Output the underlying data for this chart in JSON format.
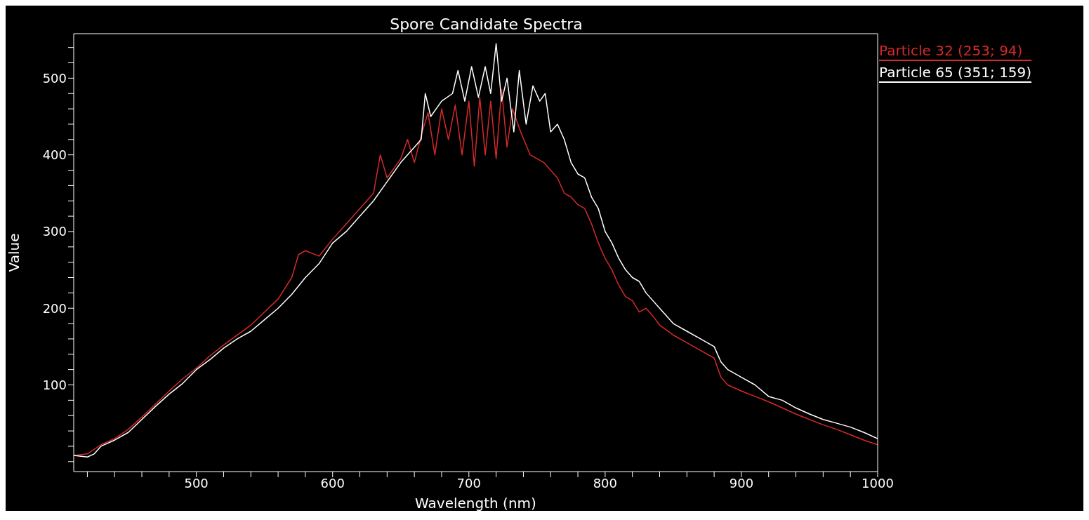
{
  "chart_data": {
    "type": "line",
    "title": "Spore Candidate Spectra",
    "xlabel": "Wavelength (nm)",
    "ylabel": "Value",
    "xlim": [
      410,
      1000
    ],
    "ylim": [
      -13,
      558
    ],
    "xticks": [
      {
        "value": 420,
        "label": null
      },
      {
        "value": 440,
        "label": null
      },
      {
        "value": 460,
        "label": null
      },
      {
        "value": 480,
        "label": null
      },
      500,
      {
        "value": 520,
        "label": null
      },
      {
        "value": 540,
        "label": null
      },
      {
        "value": 560,
        "label": null
      },
      {
        "value": 580,
        "label": null
      },
      600,
      {
        "value": 620,
        "label": null
      },
      {
        "value": 640,
        "label": null
      },
      {
        "value": 660,
        "label": null
      },
      {
        "value": 680,
        "label": null
      },
      700,
      {
        "value": 720,
        "label": null
      },
      {
        "value": 740,
        "label": null
      },
      {
        "value": 760,
        "label": null
      },
      {
        "value": 780,
        "label": null
      },
      800,
      {
        "value": 820,
        "label": null
      },
      {
        "value": 840,
        "label": null
      },
      {
        "value": 860,
        "label": null
      },
      {
        "value": 880,
        "label": null
      },
      900,
      {
        "value": 920,
        "label": null
      },
      {
        "value": 940,
        "label": null
      },
      {
        "value": 960,
        "label": null
      },
      {
        "value": 980,
        "label": null
      },
      1000
    ],
    "yticks": [
      {
        "value": 0,
        "label": null
      },
      {
        "value": 20,
        "label": null
      },
      {
        "value": 40,
        "label": null
      },
      {
        "value": 60,
        "label": null
      },
      {
        "value": 80,
        "label": null
      },
      100,
      {
        "value": 120,
        "label": null
      },
      {
        "value": 140,
        "label": null
      },
      {
        "value": 160,
        "label": null
      },
      {
        "value": 180,
        "label": null
      },
      200,
      {
        "value": 220,
        "label": null
      },
      {
        "value": 240,
        "label": null
      },
      {
        "value": 260,
        "label": null
      },
      {
        "value": 280,
        "label": null
      },
      300,
      {
        "value": 320,
        "label": null
      },
      {
        "value": 340,
        "label": null
      },
      {
        "value": 360,
        "label": null
      },
      {
        "value": 380,
        "label": null
      },
      400,
      {
        "value": 420,
        "label": null
      },
      {
        "value": 440,
        "label": null
      },
      {
        "value": 460,
        "label": null
      },
      {
        "value": 480,
        "label": null
      },
      500,
      {
        "value": 520,
        "label": null
      },
      {
        "value": 540,
        "label": null
      }
    ],
    "legend": "top right",
    "marker": "none",
    "line_style": "solid",
    "series": [
      {
        "name": "Particle 32 (253; 94)",
        "color": "#d42a2a",
        "x": [
          410,
          420,
          430,
          440,
          450,
          460,
          470,
          480,
          490,
          500,
          510,
          520,
          530,
          540,
          550,
          560,
          570,
          575,
          580,
          590,
          600,
          610,
          620,
          630,
          635,
          640,
          650,
          655,
          660,
          665,
          670,
          675,
          680,
          685,
          690,
          695,
          700,
          704,
          708,
          712,
          716,
          720,
          724,
          728,
          732,
          738,
          745,
          750,
          755,
          760,
          765,
          770,
          775,
          780,
          785,
          790,
          795,
          800,
          805,
          810,
          815,
          820,
          825,
          830,
          835,
          840,
          850,
          860,
          870,
          880,
          885,
          890,
          900,
          910,
          920,
          930,
          940,
          950,
          960,
          970,
          980,
          990,
          1000
        ],
        "values": [
          8,
          10,
          22,
          30,
          42,
          58,
          75,
          92,
          108,
          122,
          138,
          152,
          165,
          178,
          195,
          212,
          240,
          270,
          275,
          268,
          290,
          310,
          330,
          350,
          400,
          370,
          395,
          420,
          390,
          425,
          455,
          400,
          460,
          420,
          465,
          400,
          470,
          385,
          475,
          400,
          470,
          395,
          485,
          410,
          460,
          430,
          400,
          395,
          390,
          380,
          370,
          350,
          345,
          335,
          330,
          310,
          285,
          265,
          250,
          230,
          215,
          210,
          195,
          200,
          190,
          178,
          165,
          155,
          145,
          135,
          110,
          100,
          92,
          85,
          78,
          70,
          62,
          55,
          48,
          42,
          35,
          28,
          22
        ]
      },
      {
        "name": "Particle 65 (351; 159)",
        "color": "#ffffff",
        "x": [
          410,
          420,
          425,
          430,
          440,
          450,
          460,
          470,
          480,
          490,
          500,
          510,
          520,
          530,
          540,
          550,
          560,
          570,
          580,
          590,
          600,
          610,
          620,
          630,
          640,
          650,
          660,
          665,
          668,
          672,
          680,
          688,
          692,
          697,
          702,
          707,
          712,
          716,
          720,
          724,
          728,
          733,
          737,
          742,
          747,
          752,
          756,
          760,
          765,
          770,
          775,
          780,
          785,
          790,
          795,
          800,
          805,
          810,
          815,
          820,
          825,
          830,
          840,
          850,
          860,
          870,
          880,
          885,
          890,
          900,
          910,
          920,
          930,
          940,
          950,
          960,
          970,
          980,
          990,
          1000
        ],
        "values": [
          8,
          6,
          10,
          20,
          28,
          38,
          55,
          72,
          88,
          102,
          120,
          133,
          148,
          160,
          170,
          185,
          200,
          218,
          240,
          258,
          285,
          300,
          320,
          340,
          365,
          390,
          410,
          420,
          480,
          450,
          470,
          480,
          510,
          470,
          515,
          475,
          515,
          480,
          545,
          470,
          500,
          430,
          510,
          440,
          490,
          470,
          480,
          430,
          440,
          420,
          390,
          375,
          370,
          345,
          330,
          300,
          285,
          265,
          250,
          240,
          235,
          220,
          200,
          180,
          170,
          160,
          150,
          130,
          120,
          110,
          100,
          85,
          80,
          70,
          62,
          55,
          50,
          45,
          38,
          30
        ]
      }
    ]
  }
}
